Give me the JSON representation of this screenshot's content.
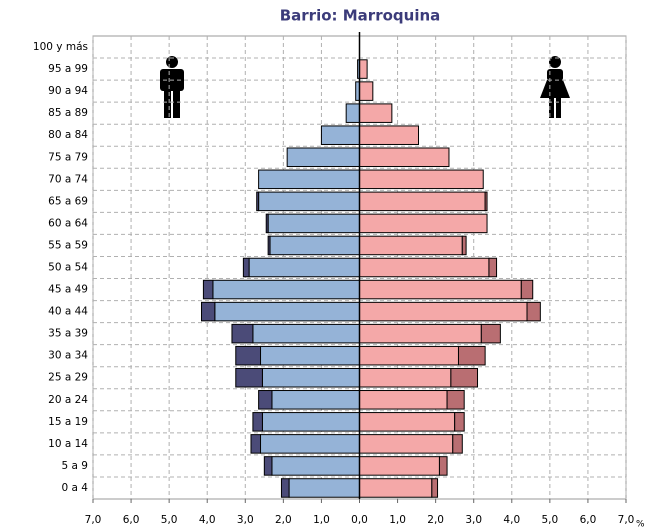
{
  "chart_data": {
    "type": "bar",
    "orientation": "horizontal",
    "title": "Barrio: Marroquina",
    "x_unit": "%",
    "categories": [
      "0 a 4",
      "5 a 9",
      "10 a 14",
      "15 a 19",
      "20 a 24",
      "25 a 29",
      "30 a 34",
      "35 a 39",
      "40 a 44",
      "45 a 49",
      "50 a 54",
      "55 a 59",
      "60 a 64",
      "65 a 69",
      "70 a 74",
      "75 a 79",
      "80 a 84",
      "85 a 89",
      "90 a 94",
      "95 a 99",
      "100 y más"
    ],
    "series": [
      {
        "color": "#95b3d7",
        "values": [
          -1.85,
          -2.3,
          -2.6,
          -2.55,
          -2.3,
          -2.55,
          -2.6,
          -2.8,
          -3.8,
          -3.85,
          -2.9,
          -2.35,
          -2.4,
          -2.65,
          -2.65,
          -1.9,
          -1.0,
          -0.35,
          -0.1,
          -0.05,
          0
        ]
      },
      {
        "color": "#4b4b78",
        "values": [
          -0.2,
          -0.2,
          -0.25,
          -0.25,
          -0.35,
          -0.7,
          -0.65,
          -0.55,
          -0.35,
          -0.25,
          -0.15,
          -0.05,
          -0.05,
          -0.05,
          0,
          0,
          0,
          0,
          0,
          0,
          0
        ]
      },
      {
        "color": "#f4a8a8",
        "values": [
          1.9,
          2.1,
          2.45,
          2.5,
          2.3,
          2.4,
          2.6,
          3.2,
          4.4,
          4.25,
          3.4,
          2.7,
          3.35,
          3.3,
          3.25,
          2.35,
          1.55,
          0.85,
          0.35,
          0.2,
          0
        ]
      },
      {
        "color": "#b96e72",
        "values": [
          0.15,
          0.2,
          0.25,
          0.25,
          0.45,
          0.7,
          0.7,
          0.5,
          0.35,
          0.3,
          0.2,
          0.1,
          0,
          0.05,
          0,
          0,
          0,
          0,
          0,
          0,
          0
        ]
      }
    ],
    "xlim": [
      -7,
      7
    ],
    "xticks": [
      {
        "value": -7,
        "label": "7,0"
      },
      {
        "value": -6,
        "label": "6,0"
      },
      {
        "value": -5,
        "label": "5,0"
      },
      {
        "value": -4,
        "label": "4,0"
      },
      {
        "value": -3,
        "label": "3,0"
      },
      {
        "value": -2,
        "label": "2,0"
      },
      {
        "value": -1,
        "label": "1,0"
      },
      {
        "value": 0,
        "label": "0,0"
      },
      {
        "value": 1,
        "label": "1,0"
      },
      {
        "value": 2,
        "label": "2,0"
      },
      {
        "value": 3,
        "label": "3,0"
      },
      {
        "value": 4,
        "label": "4,0"
      },
      {
        "value": 5,
        "label": "5,0"
      },
      {
        "value": 6,
        "label": "6,0"
      },
      {
        "value": 7,
        "label": "7,0"
      }
    ],
    "grid": true
  }
}
